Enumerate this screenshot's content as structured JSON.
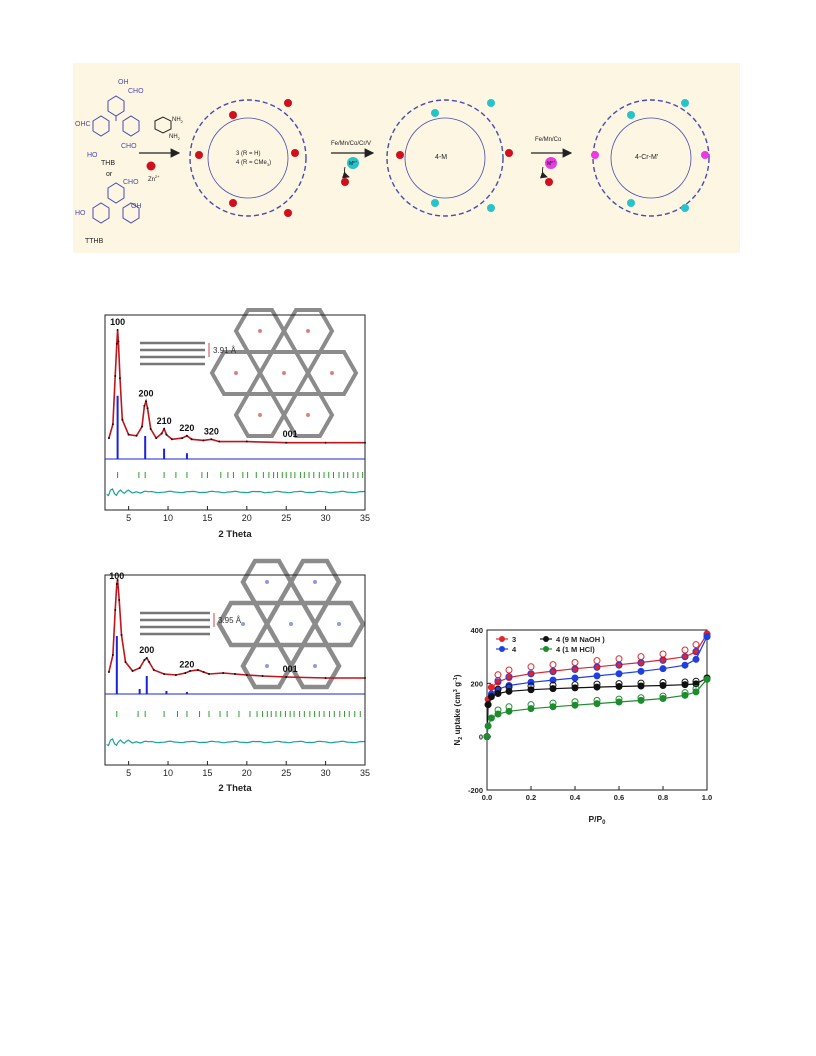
{
  "scheme": {
    "reactant_1": "THB",
    "or_label": "or",
    "reactant_2": "TTHB",
    "aldehyde": "CHO",
    "aldehyde_left": "OHC",
    "hydroxy": "OH",
    "hydroxy_left": "HO",
    "amine": "NH",
    "subscript_2": "2",
    "zinc": "Zn",
    "zinc_charge": "2+",
    "compound_3": "3 (R = H)",
    "compound_4": "4 (R = CMe",
    "compound_4_sub": "3",
    "compound_4_end": ")",
    "step_1_metals": "Fe/Mn/Co/Cr/V",
    "step_2_metals": "Fe/Mn/Co",
    "metal_ion": "M",
    "metal_ion_charge": "n+",
    "product_1": "4-M",
    "product_2": "4-Cr-M'",
    "colors": {
      "zinc": "#d0101e",
      "metal_1": "#27c3c8",
      "metal_2": "#e83be0",
      "framework": "#4a4ab0"
    }
  },
  "chart_data": [
    {
      "type": "line",
      "x_label": "2 Theta",
      "xlim": [
        2,
        35
      ],
      "x_ticks": [
        "5",
        "10",
        "15",
        "20",
        "25",
        "30",
        "35"
      ],
      "peak_labels": [
        {
          "text": "100",
          "x": 3.6
        },
        {
          "text": "200",
          "x": 7.2
        },
        {
          "text": "210",
          "x": 9.5
        },
        {
          "text": "220",
          "x": 12.4
        },
        {
          "text": "320",
          "x": 15.5
        },
        {
          "text": "001",
          "x": 25.5
        }
      ],
      "inset_label": "3.91 Å",
      "series": [
        {
          "role": "experimental",
          "color": "#c0151b",
          "x": [
            2.5,
            3.0,
            3.3,
            3.5,
            3.6,
            3.7,
            3.9,
            4.2,
            5.0,
            6.0,
            6.7,
            7.0,
            7.2,
            7.4,
            7.8,
            8.5,
            9.2,
            9.5,
            9.8,
            10.5,
            11.8,
            12.4,
            13.0,
            14.5,
            15.5,
            16.5,
            20,
            25,
            30,
            35
          ],
          "y": [
            6,
            18,
            60,
            88,
            100,
            90,
            58,
            22,
            9,
            8,
            16,
            34,
            38,
            32,
            14,
            6,
            10,
            14,
            9,
            5,
            6,
            8,
            5,
            4,
            5,
            3,
            3,
            2,
            2,
            2
          ]
        },
        {
          "role": "simulated",
          "color": "#1a23d6",
          "x": [
            3.6,
            7.1,
            9.5,
            12.4
          ],
          "y": [
            55,
            20,
            9,
            5
          ]
        },
        {
          "role": "reflection_positions",
          "color": "#2a9d2a",
          "x": [
            3.6,
            6.3,
            7.1,
            9.5,
            11.0,
            12.4,
            14.3,
            15.0,
            16.7,
            17.6,
            18.3,
            19.5,
            20.1,
            21.2,
            22.1,
            22.8,
            23.4,
            23.9,
            24.5,
            25.0,
            25.6,
            26.1,
            26.8,
            27.3,
            27.9,
            28.5,
            29.2,
            29.8,
            30.4,
            31.0,
            31.7,
            32.3,
            32.8,
            33.5,
            34.1,
            34.7
          ]
        },
        {
          "role": "difference",
          "color": "#1aa0a0"
        }
      ]
    },
    {
      "type": "line",
      "x_label": "2 Theta",
      "xlim": [
        2,
        35
      ],
      "x_ticks": [
        "5",
        "10",
        "15",
        "20",
        "25",
        "30",
        "35"
      ],
      "peak_labels": [
        {
          "text": "100",
          "x": 3.5
        },
        {
          "text": "200",
          "x": 7.3
        },
        {
          "text": "220",
          "x": 12.4
        },
        {
          "text": "001",
          "x": 25.5
        }
      ],
      "inset_label": "3.95 Å",
      "series": [
        {
          "role": "experimental",
          "color": "#c0151b",
          "x": [
            2.5,
            3.0,
            3.3,
            3.5,
            3.6,
            3.8,
            4.1,
            4.6,
            5.5,
            6.4,
            7.0,
            7.3,
            7.6,
            8.2,
            9.5,
            11.0,
            12.2,
            12.8,
            13.8,
            14.5,
            15.2,
            17.0,
            18.5,
            20.0,
            22.0,
            25.0,
            30.0,
            35.0
          ],
          "y": [
            8,
            25,
            70,
            96,
            100,
            80,
            45,
            18,
            9,
            12,
            20,
            22,
            18,
            10,
            6,
            5,
            7,
            9,
            10,
            8,
            6,
            7,
            6,
            5,
            4,
            3,
            2,
            2
          ]
        },
        {
          "role": "simulated",
          "color": "#1a23d6",
          "x": [
            3.5,
            6.4,
            7.3,
            9.8,
            12.4
          ],
          "y": [
            58,
            5,
            18,
            3,
            2
          ]
        },
        {
          "role": "reflection_positions",
          "color": "#2a9d2a",
          "x": [
            3.5,
            6.2,
            7.1,
            9.5,
            11.2,
            12.4,
            14.0,
            15.2,
            16.6,
            17.5,
            19.0,
            20.4,
            21.3,
            22.0,
            22.6,
            23.1,
            23.7,
            24.3,
            24.9,
            25.5,
            26.0,
            26.7,
            27.3,
            28.0,
            28.6,
            29.2,
            29.8,
            30.5,
            31.1,
            31.8,
            32.4,
            33.0,
            33.7,
            34.4
          ]
        },
        {
          "role": "difference",
          "color": "#1aa0a0"
        }
      ]
    },
    {
      "type": "scatter",
      "x_label_main": "P/P",
      "x_label_sub": "0",
      "y_label_main": "N",
      "y_label_sub": "2",
      "y_label_mid": " uptake (cm",
      "y_label_sup1": "3",
      "y_label_g": " g",
      "y_label_sup2": "-1",
      "y_label_end": ")",
      "xlim": [
        0,
        1.0
      ],
      "ylim": [
        -200,
        400
      ],
      "x_ticks": [
        "0.0",
        "0.2",
        "0.4",
        "0.6",
        "0.8",
        "1.0"
      ],
      "y_ticks": [
        "-200",
        "0",
        "200",
        "400"
      ],
      "legend_position": "top-left",
      "series": [
        {
          "name": "3",
          "color": "#e0242c",
          "x": [
            0.0,
            0.005,
            0.02,
            0.05,
            0.1,
            0.2,
            0.3,
            0.4,
            0.5,
            0.6,
            0.7,
            0.8,
            0.9,
            0.95,
            1.0
          ],
          "adsorption": [
            0,
            140,
            185,
            205,
            222,
            236,
            246,
            255,
            262,
            270,
            278,
            288,
            300,
            318,
            385
          ],
          "desorption": [
            null,
            null,
            null,
            232,
            250,
            262,
            270,
            278,
            285,
            292,
            300,
            310,
            325,
            345,
            385
          ]
        },
        {
          "name": "4",
          "color": "#1f3fe0",
          "x": [
            0.0,
            0.005,
            0.02,
            0.05,
            0.1,
            0.2,
            0.3,
            0.4,
            0.5,
            0.6,
            0.7,
            0.8,
            0.9,
            0.95,
            1.0
          ],
          "adsorption": [
            0,
            120,
            160,
            178,
            192,
            204,
            212,
            220,
            228,
            236,
            245,
            255,
            268,
            290,
            375
          ],
          "desorption": [
            null,
            null,
            null,
            210,
            225,
            236,
            244,
            252,
            260,
            268,
            276,
            286,
            300,
            320,
            375
          ]
        },
        {
          "name": "4 (9 M NaOH )",
          "color": "#111111",
          "x": [
            0.0,
            0.005,
            0.02,
            0.05,
            0.1,
            0.2,
            0.3,
            0.4,
            0.5,
            0.6,
            0.7,
            0.8,
            0.9,
            0.95,
            1.0
          ],
          "adsorption": [
            0,
            120,
            150,
            162,
            170,
            176,
            180,
            183,
            186,
            188,
            190,
            192,
            195,
            198,
            220
          ],
          "desorption": [
            null,
            null,
            null,
            178,
            186,
            190,
            193,
            195,
            197,
            199,
            201,
            203,
            205,
            208,
            220
          ]
        },
        {
          "name": "4 (1 M HCl)",
          "color": "#1e8c2e",
          "x": [
            0.0,
            0.005,
            0.02,
            0.05,
            0.1,
            0.2,
            0.3,
            0.4,
            0.5,
            0.6,
            0.7,
            0.8,
            0.9,
            0.95,
            1.0
          ],
          "adsorption": [
            0,
            40,
            70,
            85,
            95,
            105,
            112,
            118,
            124,
            130,
            136,
            143,
            155,
            168,
            215
          ],
          "desorption": [
            null,
            null,
            null,
            100,
            112,
            120,
            126,
            131,
            136,
            141,
            146,
            152,
            165,
            180,
            215
          ]
        }
      ]
    }
  ]
}
